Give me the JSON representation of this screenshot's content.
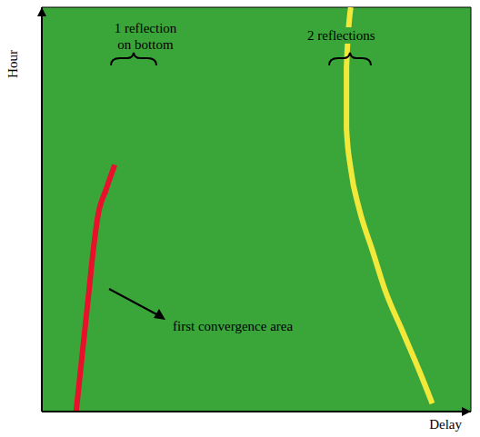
{
  "chart_data": {
    "type": "line",
    "x_label": "Delay",
    "y_label": "Hour",
    "xlim": [
      0,
      100
    ],
    "xticks": [
      26,
      65
    ],
    "ylim": [
      0,
      100
    ],
    "yticks": [
      10,
      44
    ],
    "grid": true,
    "tick_labels": false,
    "annotations": [
      {
        "text": "1 reflection on bottom"
      },
      {
        "text": "2 reflections"
      },
      {
        "text": "first convergence area"
      }
    ],
    "series": [
      {
        "color": "#e8102a",
        "marker": "none",
        "x": [
          8,
          9,
          10,
          11,
          12,
          13,
          15,
          17
        ],
        "values": [
          0,
          10,
          20,
          30,
          40,
          48,
          55,
          61
        ]
      },
      {
        "color": "#f2e83a",
        "marker": "none",
        "x": [
          91,
          88,
          84,
          80,
          77,
          74,
          72,
          71,
          71,
          72
        ],
        "values": [
          2,
          10,
          20,
          30,
          40,
          50,
          60,
          70,
          85,
          100
        ]
      }
    ]
  }
}
